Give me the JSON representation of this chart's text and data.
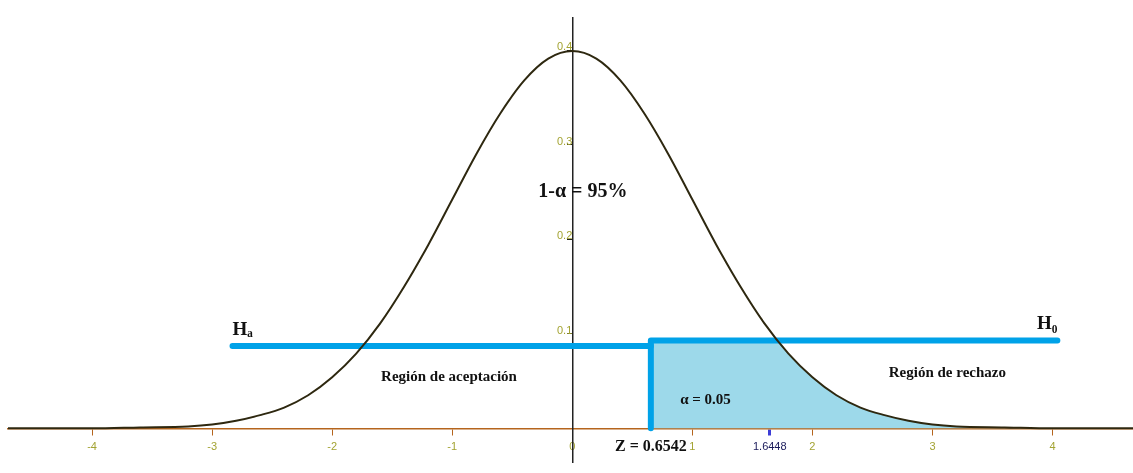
{
  "chart_data": {
    "type": "line",
    "xlim": [
      -4.7,
      4.67
    ],
    "ylim": [
      -0.036,
      0.434
    ],
    "xticks": [
      -4,
      -3,
      -2,
      -1,
      0,
      1,
      1.6448,
      2,
      3,
      4
    ],
    "yticks": [
      0.1,
      0.2,
      0.3,
      0.4
    ],
    "marker": "none",
    "line_style": "solid",
    "series": [
      {
        "color": "#2e2810",
        "x": [
          -4.7,
          -4.4,
          -4.0,
          -3.6,
          -3.2,
          -3.0,
          -2.8,
          -2.6,
          -2.4,
          -2.2,
          -2.0,
          -1.8,
          -1.6,
          -1.4,
          -1.2,
          -1.0,
          -0.8,
          -0.6,
          -0.4,
          -0.2,
          0,
          0.2,
          0.4,
          0.6,
          0.8,
          1.0,
          1.2,
          1.4,
          1.6,
          1.8,
          2.0,
          2.2,
          2.4,
          2.6,
          2.8,
          3.0,
          3.2,
          3.6,
          4.0,
          4.4,
          4.67
        ],
        "values": [
          0,
          0,
          0,
          0.001,
          0.002,
          0.004,
          0.008,
          0.014,
          0.022,
          0.035,
          0.054,
          0.079,
          0.111,
          0.15,
          0.194,
          0.242,
          0.29,
          0.333,
          0.368,
          0.391,
          0.399,
          0.391,
          0.368,
          0.333,
          0.29,
          0.242,
          0.194,
          0.15,
          0.111,
          0.079,
          0.054,
          0.035,
          0.022,
          0.014,
          0.008,
          0.004,
          0.002,
          0.001,
          0,
          0,
          0
        ]
      },
      {
        "type": "area",
        "color": "#9dd9ea",
        "x": [
          0.6542,
          1.707,
          1.8,
          2.0,
          2.2,
          2.4,
          2.6,
          2.8,
          3.0,
          3.2,
          3.6,
          4.0,
          4.4,
          4.67
        ],
        "values": [
          0.093,
          0.093,
          0.079,
          0.054,
          0.035,
          0.022,
          0.014,
          0.008,
          0.004,
          0.002,
          0.001,
          0,
          0,
          0
        ]
      },
      {
        "type": "line",
        "name": "Hₐ",
        "color": "#00a2e8",
        "x": [
          -2.83,
          0.6542
        ],
        "values": [
          0.087,
          0.087
        ]
      },
      {
        "type": "line",
        "name": "H₀",
        "color": "#00a2e8",
        "x": [
          0.6542,
          0.6542,
          4.04
        ],
        "values": [
          0,
          0.093,
          0.093
        ]
      }
    ],
    "annotations": [
      "1-α = 95%",
      "Región de aceptación",
      "Región de rechazo",
      "α = 0.05",
      {
        "text": "Z = 0.6542",
        "x": 0.6542,
        "y": 0
      }
    ]
  }
}
